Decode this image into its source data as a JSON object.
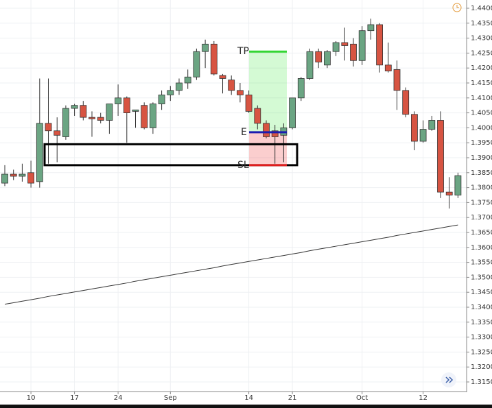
{
  "chart_data": {
    "type": "candlestick",
    "categories": [
      null,
      null,
      null,
      "10",
      null,
      null,
      null,
      null,
      "17",
      null,
      null,
      null,
      null,
      "24",
      null,
      null,
      null,
      null,
      null,
      "Sep",
      null,
      null,
      null,
      null,
      null,
      null,
      null,
      null,
      "14",
      null,
      null,
      null,
      null,
      "21",
      null,
      null,
      null,
      null,
      null,
      null,
      null,
      "Oct",
      null,
      null,
      null,
      null,
      null,
      null,
      "12",
      null,
      null,
      null,
      null
    ],
    "open": [
      1.3815,
      1.3845,
      1.3838,
      1.385,
      1.382,
      1.4015,
      1.399,
      1.397,
      1.4065,
      1.4075,
      1.4035,
      1.4035,
      1.4025,
      1.408,
      1.41,
      1.4055,
      1.4075,
      1.4,
      1.408,
      1.411,
      1.4125,
      1.415,
      1.417,
      1.4255,
      1.428,
      1.4175,
      1.416,
      1.4125,
      1.411,
      1.4065,
      1.4015,
      1.399,
      1.3975,
      1.4,
      1.41,
      1.4165,
      1.4255,
      1.421,
      1.4255,
      1.4285,
      1.428,
      1.4225,
      1.4325,
      1.4345,
      1.421,
      1.4195,
      1.4125,
      1.4045,
      1.3955,
      1.3995,
      1.4025,
      1.3785,
      1.3775
    ],
    "high": [
      1.3875,
      1.386,
      1.388,
      1.389,
      1.4165,
      1.4165,
      1.4035,
      1.4075,
      1.408,
      1.409,
      1.4055,
      1.405,
      1.408,
      1.4145,
      1.4105,
      1.406,
      1.4085,
      1.4085,
      1.4125,
      1.414,
      1.4165,
      1.4195,
      1.4265,
      1.4295,
      1.429,
      1.418,
      1.4175,
      1.415,
      1.4125,
      1.4075,
      1.4025,
      1.401,
      1.4015,
      1.41,
      1.417,
      1.4265,
      1.4265,
      1.426,
      1.429,
      1.4335,
      1.43,
      1.434,
      1.4365,
      1.435,
      1.4285,
      1.4225,
      1.4135,
      1.4055,
      1.4025,
      1.404,
      1.4055,
      1.3835,
      1.385
    ],
    "low": [
      1.3805,
      1.3825,
      1.382,
      1.38,
      1.38,
      1.388,
      1.3885,
      1.396,
      1.404,
      1.4025,
      1.397,
      1.4015,
      1.398,
      1.404,
      1.395,
      1.4,
      1.3995,
      1.398,
      1.406,
      1.409,
      1.411,
      1.413,
      1.416,
      1.42,
      1.4175,
      1.4115,
      1.411,
      1.4085,
      1.405,
      1.3995,
      1.3965,
      1.388,
      1.3885,
      1.3995,
      1.409,
      1.416,
      1.42,
      1.42,
      1.424,
      1.4225,
      1.4205,
      1.421,
      1.4295,
      1.4185,
      1.4185,
      1.406,
      1.4035,
      1.3925,
      1.395,
      1.399,
      1.3765,
      1.373,
      1.3765
    ],
    "close": [
      1.3845,
      1.3838,
      1.3845,
      1.3815,
      1.4015,
      1.399,
      1.3975,
      1.4065,
      1.4075,
      1.4035,
      1.403,
      1.4025,
      1.408,
      1.41,
      1.405,
      1.406,
      1.4,
      1.408,
      1.411,
      1.4125,
      1.415,
      1.417,
      1.4255,
      1.428,
      1.418,
      1.4165,
      1.4125,
      1.411,
      1.4055,
      1.4015,
      1.397,
      1.397,
      1.4,
      1.41,
      1.4165,
      1.4255,
      1.422,
      1.4255,
      1.4285,
      1.4275,
      1.4225,
      1.4325,
      1.4345,
      1.421,
      1.419,
      1.4125,
      1.4045,
      1.3955,
      1.3995,
      1.4025,
      1.3785,
      1.3775,
      1.384
    ],
    "up_color": "#6ba583",
    "down_color": "#d75442",
    "wick_color": "#333333",
    "ma": {
      "color": "#333333",
      "values": [
        1.341,
        1.3415,
        1.342,
        1.3425,
        1.343,
        1.3436,
        1.3441,
        1.3446,
        1.3451,
        1.3456,
        1.3461,
        1.3466,
        1.3471,
        1.3476,
        1.3481,
        1.3487,
        1.3492,
        1.3497,
        1.3502,
        1.3507,
        1.3512,
        1.3517,
        1.3522,
        1.3527,
        1.3532,
        1.3538,
        1.3543,
        1.3548,
        1.3553,
        1.3558,
        1.3563,
        1.3568,
        1.3573,
        1.3578,
        1.3583,
        1.3589,
        1.3594,
        1.3599,
        1.3604,
        1.3609,
        1.3614,
        1.3619,
        1.3624,
        1.3629,
        1.3634,
        1.364,
        1.3645,
        1.365,
        1.3655,
        1.366,
        1.3665,
        1.367,
        1.3675
      ]
    },
    "annotations": [
      {
        "label": "TP",
        "value": 1.4255,
        "color": "#33d633"
      },
      {
        "label": "E",
        "value": 1.3985,
        "color": "#1c1cb0"
      },
      {
        "label": "SL",
        "value": 1.3875,
        "color": "#e01e1e"
      }
    ],
    "zone": {
      "low": 1.3875,
      "high": 1.3945
    },
    "ylim": [
      1.31202,
      1.44275
    ],
    "yticks": [
      {
        "value": 1.315,
        "label": "1.31500"
      },
      {
        "value": 1.32,
        "label": "1.32000"
      },
      {
        "value": 1.325,
        "label": "1.32500"
      },
      {
        "value": 1.33,
        "label": "1.33000"
      },
      {
        "value": 1.335,
        "label": "1.33500"
      },
      {
        "value": 1.34,
        "label": "1.34000"
      },
      {
        "value": 1.345,
        "label": "1.34500"
      },
      {
        "value": 1.35,
        "label": "1.35000"
      },
      {
        "value": 1.355,
        "label": "1.35500"
      },
      {
        "value": 1.36,
        "label": "1.36000"
      },
      {
        "value": 1.365,
        "label": "1.36500"
      },
      {
        "value": 1.37,
        "label": "1.37000"
      },
      {
        "value": 1.375,
        "label": "1.37500"
      },
      {
        "value": 1.38,
        "label": "1.38000"
      },
      {
        "value": 1.385,
        "label": "1.38500"
      },
      {
        "value": 1.39,
        "label": "1.39000"
      },
      {
        "value": 1.395,
        "label": "1.39500"
      },
      {
        "value": 1.4,
        "label": "1.40000"
      },
      {
        "value": 1.405,
        "label": "1.40500"
      },
      {
        "value": 1.41,
        "label": "1.41000"
      },
      {
        "value": 1.415,
        "label": "1.41500"
      },
      {
        "value": 1.42,
        "label": "1.42000"
      },
      {
        "value": 1.425,
        "label": "1.42500"
      },
      {
        "value": 1.43,
        "label": "1.43000"
      },
      {
        "value": 1.435,
        "label": "1.43500"
      },
      {
        "value": 1.44,
        "label": "1.44000"
      }
    ],
    "grid": true
  }
}
